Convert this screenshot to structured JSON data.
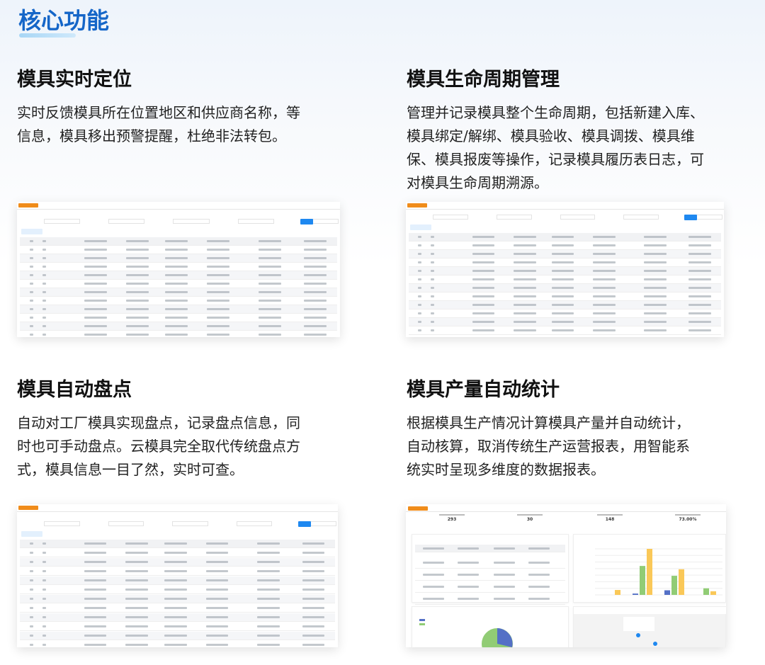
{
  "header": {
    "title": "核心功能"
  },
  "sections": [
    {
      "title": "模具实时定位",
      "lines": [
        "实时反馈模具所在位置地区和供应商名称，等",
        "信息，模具移出预警提醒，杜绝非法转包。"
      ]
    },
    {
      "title": "模具生命周期管理",
      "lines": [
        "管理并记录模具整个生命周期，包括新建入库、",
        "模具绑定/解绑、模具验收、模具调拨、模具维",
        "保、模具报废等操作，记录模具履历表日志，可",
        "对模具生命周期溯源。"
      ]
    },
    {
      "title": "模具自动盘点",
      "lines": [
        "自动对工厂模具实现盘点，记录盘点信息，同",
        "时也可手动盘点。云模具完全取代传统盘点方",
        "式，模具信息一目了然，实时可查。"
      ]
    },
    {
      "title": "模具产量自动统计",
      "lines": [
        "根据模具生产情况计算模具产量并自动统计，",
        "自动核算，取消传统生产运营报表，用智能系",
        "统实时呈现多维度的数据报表。"
      ]
    }
  ],
  "dashboard": {
    "stats": [
      "293",
      "30",
      "148",
      "73.00%"
    ]
  },
  "colors": {
    "accent": "#1566c8",
    "tag": "#f08c1a",
    "primary_button": "#1e88f0",
    "bar_blue": "#5470c6",
    "bar_green": "#91cc75",
    "bar_yellow": "#fac858"
  },
  "chart_data": {
    "type": "bar",
    "series": [
      {
        "values": [
          0,
          20000,
          70000,
          0
        ]
      },
      {
        "values": [
          0,
          440000,
          290000,
          100000
        ]
      },
      {
        "values": [
          75000,
          700000,
          390000,
          55000
        ]
      }
    ],
    "ylim": [
      0,
      700000
    ]
  }
}
